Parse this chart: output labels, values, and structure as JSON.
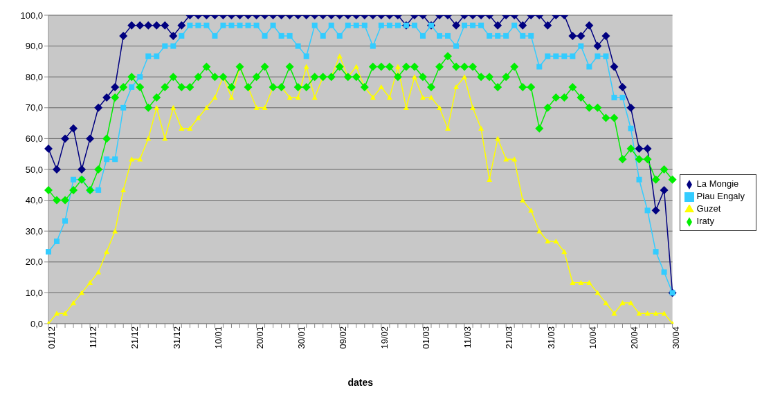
{
  "chart_data": {
    "type": "line",
    "xlabel": "dates",
    "legend": "right",
    "grid": "y",
    "line_style": "solid",
    "categories": [
      "01/12",
      null,
      null,
      null,
      null,
      "11/12",
      null,
      null,
      null,
      null,
      "21/12",
      null,
      null,
      null,
      null,
      "31/12",
      null,
      null,
      null,
      null,
      "10/01",
      null,
      null,
      null,
      null,
      "20/01",
      null,
      null,
      null,
      null,
      "30/01",
      null,
      null,
      null,
      null,
      "09/02",
      null,
      null,
      null,
      null,
      "19/02",
      null,
      null,
      null,
      null,
      "01/03",
      null,
      null,
      null,
      null,
      "11/03",
      null,
      null,
      null,
      null,
      "21/03",
      null,
      null,
      null,
      null,
      "31/03",
      null,
      null,
      null,
      null,
      "10/04",
      null,
      null,
      null,
      null,
      "20/04",
      null,
      null,
      null,
      null,
      "30/04"
    ],
    "ylim": [
      0,
      100
    ],
    "yticks": [
      {
        "value": 0,
        "label": "0,0"
      },
      {
        "value": 10,
        "label": "10,0"
      },
      {
        "value": 20,
        "label": "20,0"
      },
      {
        "value": 30,
        "label": "30,0"
      },
      {
        "value": 40,
        "label": "40,0"
      },
      {
        "value": 50,
        "label": "50,0"
      },
      {
        "value": 60,
        "label": "60,0"
      },
      {
        "value": 70,
        "label": "70,0"
      },
      {
        "value": 80,
        "label": "80,0"
      },
      {
        "value": 90,
        "label": "90,0"
      },
      {
        "value": 100,
        "label": "100,0"
      }
    ],
    "series": [
      {
        "name": "La Mongie",
        "color": "#000080",
        "marker": "diamond",
        "values": [
          56.7,
          50,
          60,
          63.3,
          50,
          60,
          70,
          73.3,
          76.7,
          93.3,
          96.7,
          96.7,
          96.7,
          96.7,
          96.7,
          93.3,
          96.7,
          100,
          100,
          100,
          100,
          100,
          100,
          100,
          100,
          100,
          100,
          100,
          100,
          100,
          100,
          100,
          100,
          100,
          100,
          100,
          100,
          100,
          100,
          100,
          100,
          100,
          100,
          96.7,
          100,
          100,
          96.7,
          100,
          100,
          96.7,
          100,
          100,
          100,
          100,
          96.7,
          100,
          100,
          96.7,
          100,
          100,
          96.7,
          100,
          100,
          93.3,
          93.3,
          96.7,
          90,
          93.3,
          83.3,
          76.7,
          70,
          56.7,
          56.7,
          36.7,
          43.3,
          10
        ]
      },
      {
        "name": "Piau Engaly",
        "color": "#33ccff",
        "marker": "square",
        "values": [
          23.3,
          26.7,
          33.3,
          46.7,
          46.7,
          43.3,
          43.3,
          53.3,
          53.3,
          70,
          76.7,
          80,
          86.7,
          86.7,
          90,
          90,
          93.3,
          96.7,
          96.7,
          96.7,
          93.3,
          96.7,
          96.7,
          96.7,
          96.7,
          96.7,
          93.3,
          96.7,
          93.3,
          93.3,
          90,
          86.7,
          96.7,
          93.3,
          96.7,
          93.3,
          96.7,
          96.7,
          96.7,
          90,
          96.7,
          96.7,
          96.7,
          96.7,
          96.7,
          93.3,
          96.7,
          93.3,
          93.3,
          90,
          96.7,
          96.7,
          96.7,
          93.3,
          93.3,
          93.3,
          96.7,
          93.3,
          93.3,
          83.3,
          86.7,
          86.7,
          86.7,
          86.7,
          90,
          83.3,
          86.7,
          86.7,
          73.3,
          73.3,
          63.3,
          46.7,
          36.7,
          23.3,
          16.7,
          10
        ]
      },
      {
        "name": "Guzet",
        "color": "#ffff00",
        "marker": "triangle",
        "values": [
          0,
          3.3,
          3.3,
          6.7,
          10,
          13.3,
          16.7,
          23.3,
          30,
          43.3,
          53.3,
          53.3,
          60,
          70,
          60,
          70,
          63.3,
          63.3,
          66.7,
          70,
          73.3,
          80,
          73.3,
          83.3,
          76.7,
          70,
          70,
          76.7,
          76.7,
          73.3,
          73.3,
          83.3,
          73.3,
          80,
          80,
          86.7,
          80,
          83.3,
          76.7,
          73.3,
          76.7,
          73.3,
          83.3,
          70,
          80,
          73.3,
          73.3,
          70,
          63.3,
          76.7,
          80,
          70,
          63.3,
          46.7,
          60,
          53.3,
          53.3,
          40,
          36.7,
          30,
          26.7,
          26.7,
          23.3,
          13.3,
          13.3,
          13.3,
          10,
          6.7,
          3.3,
          6.7,
          6.7,
          3.3,
          3.3,
          3.3,
          3.3,
          0
        ]
      },
      {
        "name": "Iraty",
        "color": "#00ee00",
        "marker": "diamond",
        "values": [
          43.3,
          40,
          40,
          43.3,
          46.7,
          43.3,
          50,
          60,
          73.3,
          76.7,
          80,
          76.7,
          70,
          73.3,
          76.7,
          80,
          76.7,
          76.7,
          80,
          83.3,
          80,
          80,
          76.7,
          83.3,
          76.7,
          80,
          83.3,
          76.7,
          76.7,
          83.3,
          76.7,
          76.7,
          80,
          80,
          80,
          83.3,
          80,
          80,
          76.7,
          83.3,
          83.3,
          83.3,
          80,
          83.3,
          83.3,
          80,
          76.7,
          83.3,
          86.7,
          83.3,
          83.3,
          83.3,
          80,
          80,
          76.7,
          80,
          83.3,
          76.7,
          76.7,
          63.3,
          70,
          73.3,
          73.3,
          76.7,
          73.3,
          70,
          70,
          66.7,
          66.7,
          53.3,
          56.7,
          53.3,
          53.3,
          46.7,
          50,
          46.7
        ]
      }
    ]
  }
}
